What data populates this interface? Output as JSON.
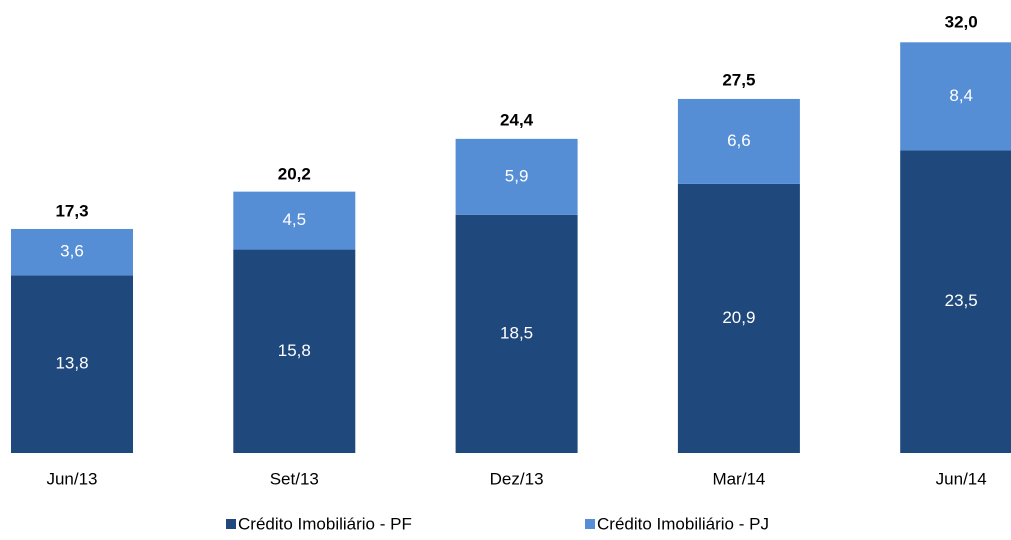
{
  "chart_data": {
    "type": "stacked-bar",
    "categories": [
      "Jun/13",
      "Set/13",
      "Dez/13",
      "Mar/14",
      "Jun/14"
    ],
    "series": [
      {
        "name": "Crédito Imobiliário - PF",
        "color": "#1f497d",
        "values": [
          13.8,
          15.8,
          18.5,
          20.9,
          23.5
        ],
        "value_labels": [
          "13,8",
          "15,8",
          "18,5",
          "20,9",
          "23,5"
        ]
      },
      {
        "name": "Crédito Imobiliário - PJ",
        "color": "#558ed5",
        "values": [
          3.6,
          4.5,
          5.9,
          6.6,
          8.4
        ],
        "value_labels": [
          "3,6",
          "4,5",
          "5,9",
          "6,6",
          "8,4"
        ]
      }
    ],
    "totals": [
      17.3,
      20.2,
      24.4,
      27.5,
      32.0
    ],
    "total_labels": [
      "17,3",
      "20,2",
      "24,4",
      "27,5",
      "32,0"
    ],
    "legend": "bottom"
  }
}
